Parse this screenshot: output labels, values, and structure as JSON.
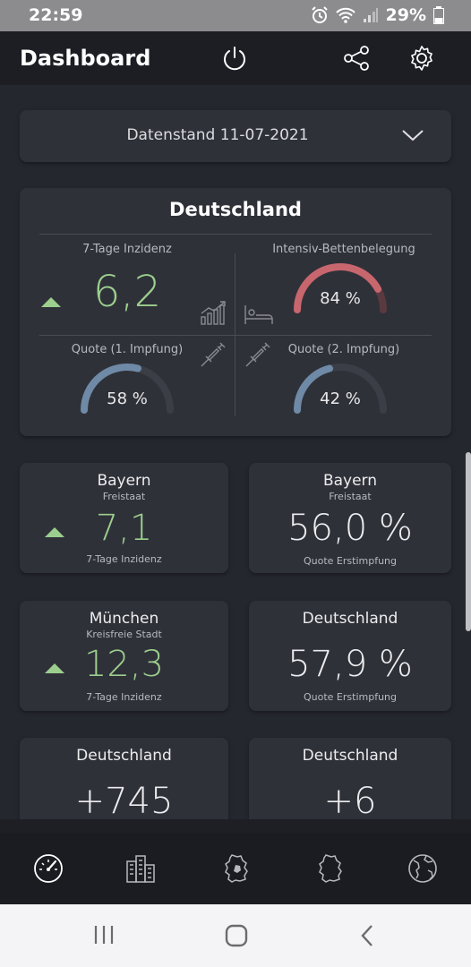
{
  "status_bar": {
    "time": "22:59",
    "battery": "29%"
  },
  "header": {
    "title": "Dashboard"
  },
  "date_select": {
    "label": "Datenstand 11-07-2021"
  },
  "germany_card": {
    "title": "Deutschland",
    "incidence": {
      "label": "7-Tage Inzidenz",
      "value": "6,2"
    },
    "icu": {
      "label": "Intensiv-Bettenbelegung",
      "value": "84 %",
      "fraction": 0.84
    },
    "first_vacc": {
      "label": "Quote (1. Impfung)",
      "value": "58 %",
      "fraction": 0.58
    },
    "second_vacc": {
      "label": "Quote (2. Impfung)",
      "value": "42 %",
      "fraction": 0.42
    }
  },
  "tiles": [
    {
      "title": "Bayern",
      "subtitle": "Freistaat",
      "value": "7,1",
      "caption": "7-Tage Inzidenz"
    },
    {
      "title": "Bayern",
      "subtitle": "Freistaat",
      "value": "56,0 %",
      "caption": "Quote Erstimpfung"
    },
    {
      "title": "München",
      "subtitle": "Kreisfreie Stadt",
      "value": "12,3",
      "caption": "7-Tage Inzidenz"
    },
    {
      "title": "Deutschland",
      "subtitle": "",
      "value": "57,9 %",
      "caption": "Quote Erstimpfung"
    },
    {
      "title": "Deutschland",
      "subtitle": "",
      "value": "+745",
      "caption": ""
    },
    {
      "title": "Deutschland",
      "subtitle": "",
      "value": "+6",
      "caption": ""
    }
  ],
  "colors": {
    "green": "#9ccf8e",
    "red": "#c8666e",
    "blue": "#6f8aa6",
    "track": "#3c3e47"
  },
  "icons": {
    "header": [
      "power-icon",
      "share-icon",
      "settings-icon"
    ],
    "nav": [
      "speedometer-icon",
      "city-icon",
      "state-map-icon",
      "germany-map-icon",
      "globe-icon"
    ],
    "system": [
      "recent-apps-icon",
      "home-icon",
      "back-icon"
    ]
  }
}
